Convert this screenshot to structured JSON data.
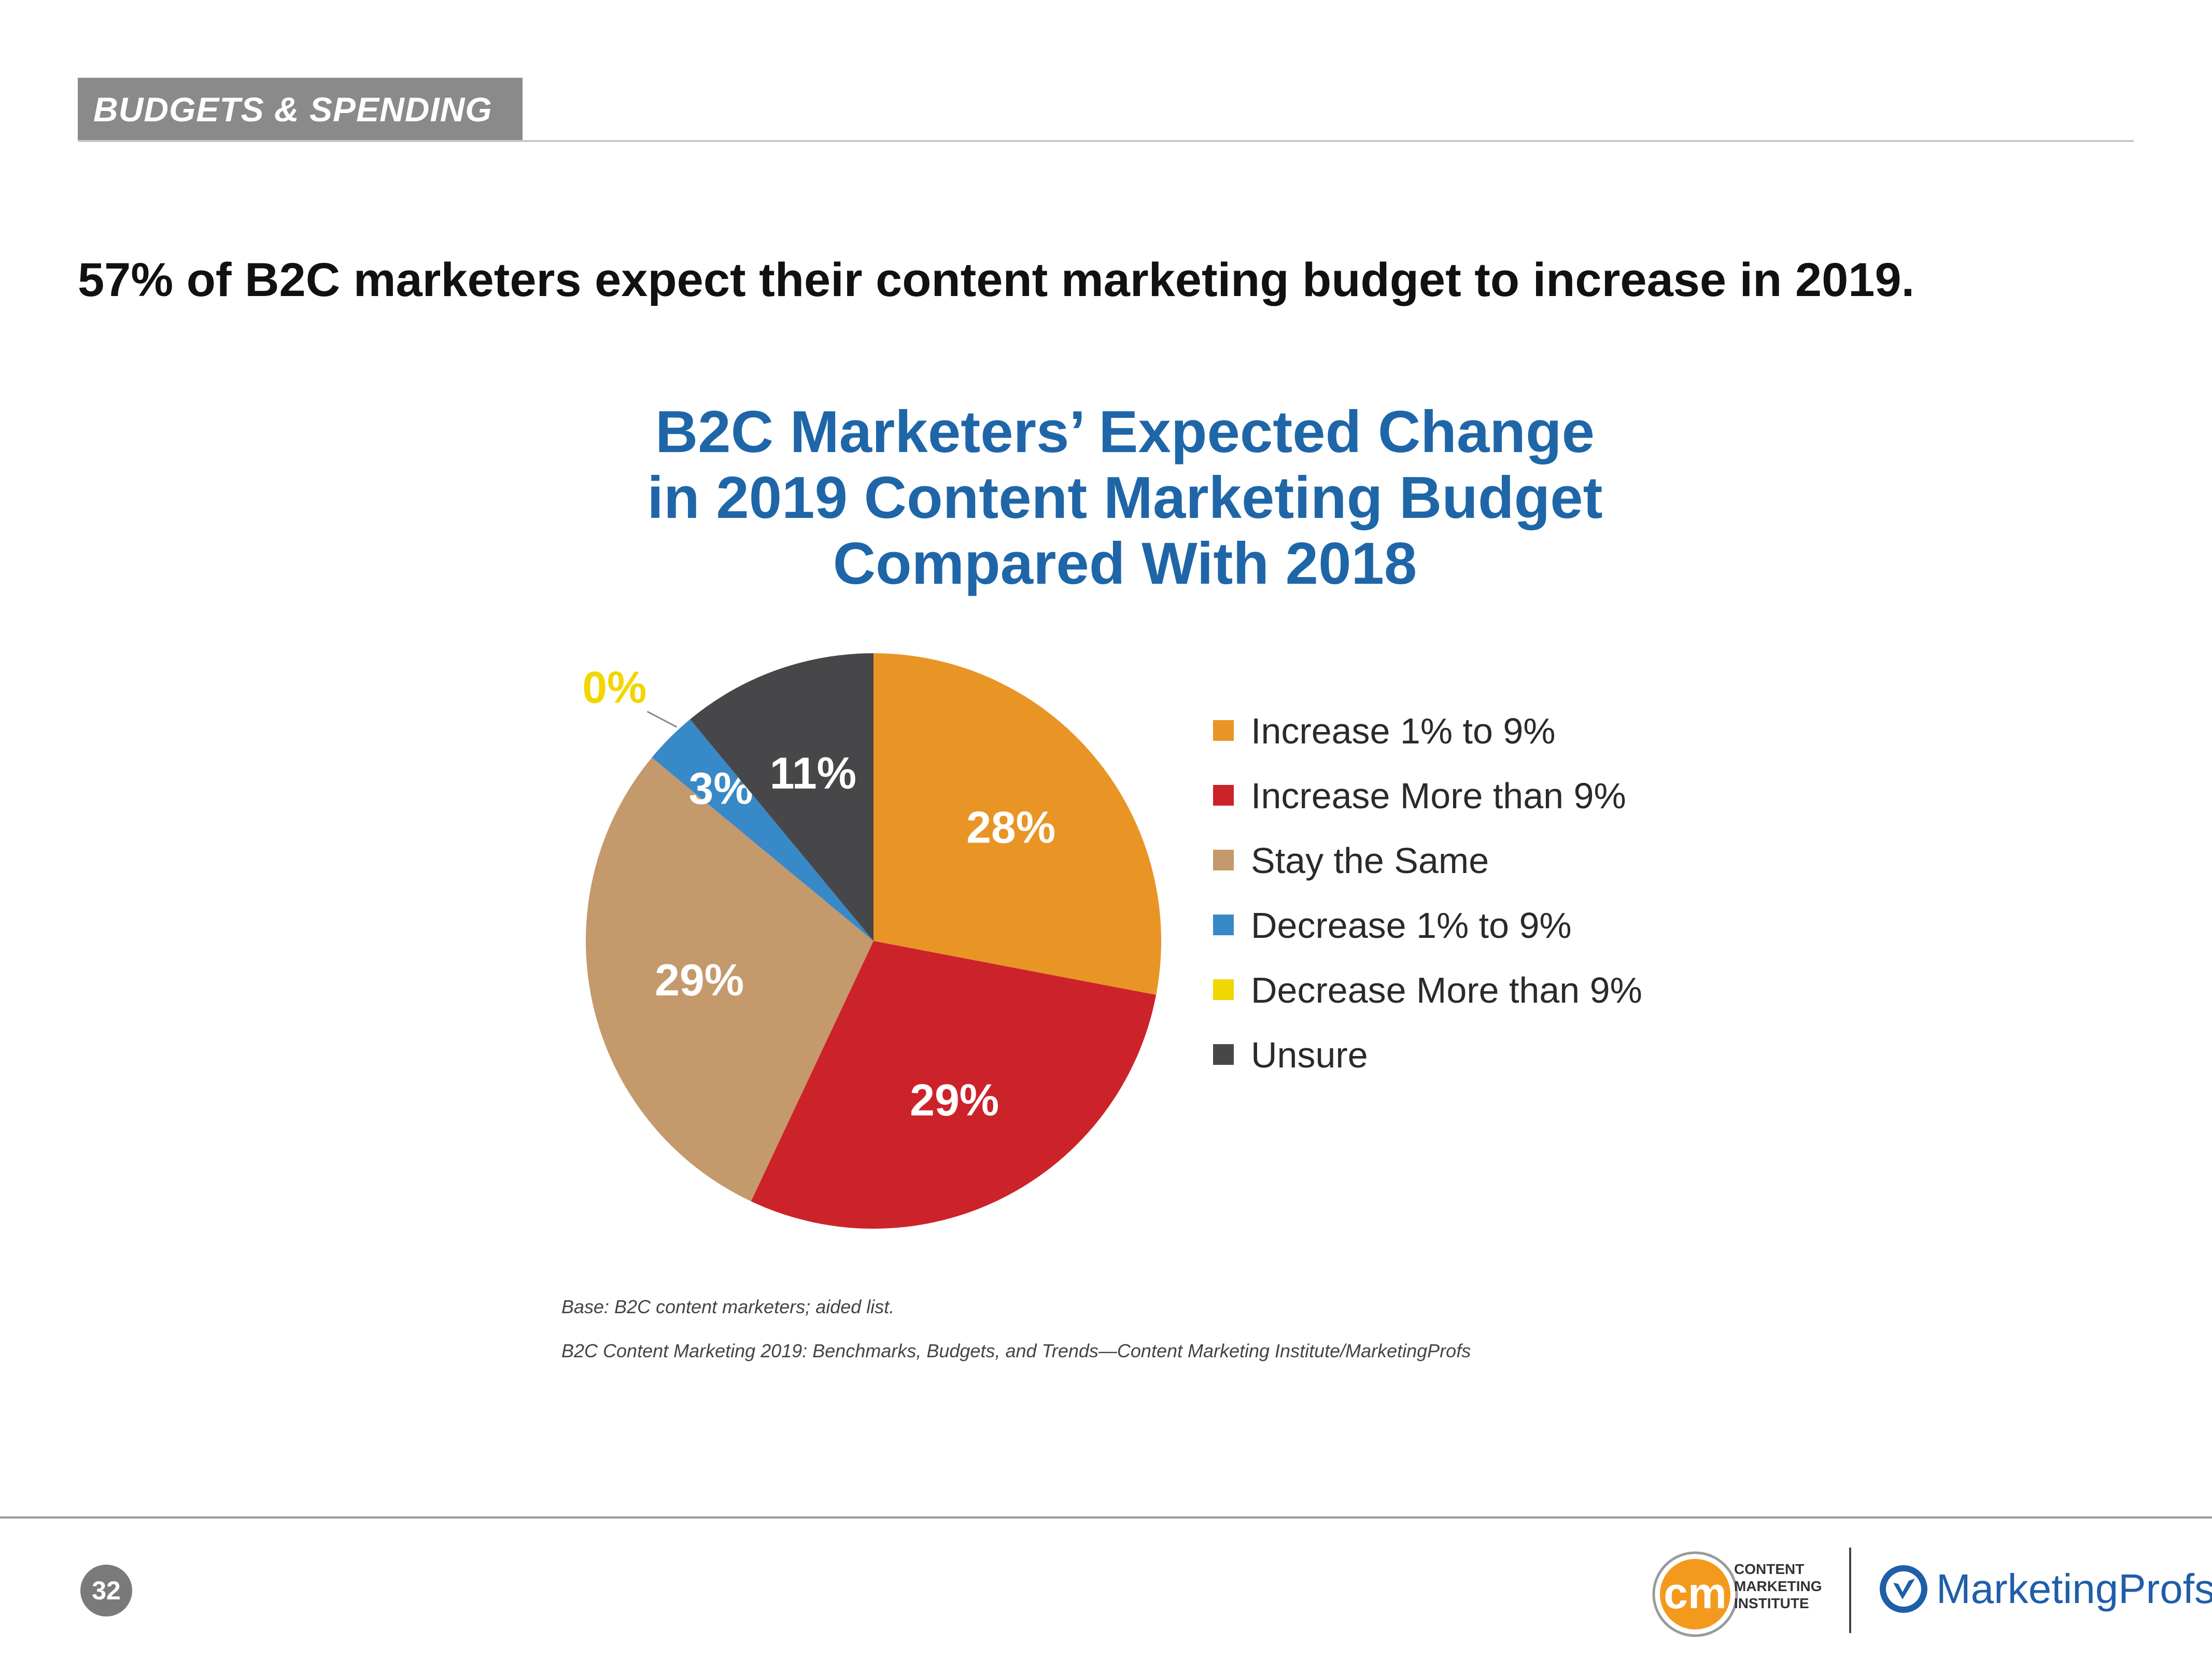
{
  "header": {
    "section_label": "BUDGETS & SPENDING"
  },
  "headline": "57% of B2C marketers expect their content marketing budget to increase in 2019.",
  "chart_data": {
    "type": "pie",
    "title_lines": [
      "B2C Marketers’ Expected Change",
      "in 2019 Content Marketing Budget",
      "Compared With 2018"
    ],
    "start_angle_deg": 0,
    "direction": "clockwise",
    "slices": [
      {
        "label": "Increase 1% to 9%",
        "value": 28,
        "display": "28%",
        "color": "#e89526",
        "label_color": "#ffffff"
      },
      {
        "label": "Increase More than 9%",
        "value": 29,
        "display": "29%",
        "color": "#cc232b",
        "label_color": "#ffffff"
      },
      {
        "label": "Stay the Same",
        "value": 29,
        "display": "29%",
        "color": "#c4996b",
        "label_color": "#ffffff"
      },
      {
        "label": "Decrease 1% to 9%",
        "value": 3,
        "display": "3%",
        "color": "#3889c8",
        "label_color": "#ffffff"
      },
      {
        "label": "Decrease More than 9%",
        "value": 0,
        "display": "0%",
        "color": "#f2d600",
        "label_color": "#f2d600",
        "callout": true
      },
      {
        "label": "Unsure",
        "value": 11,
        "display": "11%",
        "color": "#47474a",
        "label_color": "#ffffff"
      }
    ],
    "legend_position": "right"
  },
  "footnotes": {
    "base": "Base: B2C content marketers; aided list.",
    "source": "B2C Content Marketing 2019: Benchmarks, Budgets, and Trends—Content Marketing Institute/MarketingProfs"
  },
  "footer": {
    "page_number": "32",
    "cmi_monogram": "cm",
    "cmi_line1": "CONTENT",
    "cmi_line2": "MARKETING",
    "cmi_line3": "INSTITUTE",
    "mp_name": "MarketingProfs"
  },
  "colors": {
    "accent_blue": "#1f66a8",
    "header_gray": "#8a8a8a",
    "cmi_orange": "#f39a1e",
    "mp_blue": "#1f5ea8"
  }
}
